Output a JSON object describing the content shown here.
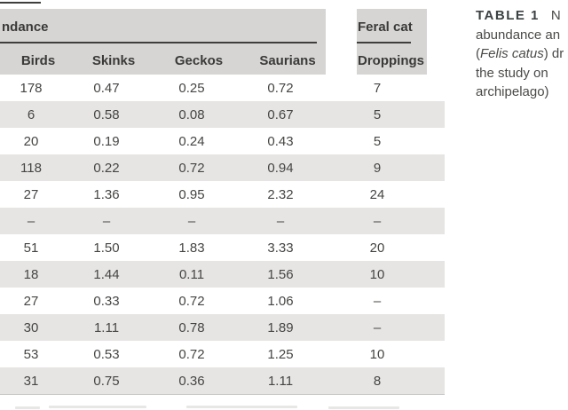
{
  "colors": {
    "header_band": "#d6d5d3",
    "row_stripe": "#e6e5e3",
    "rule": "#3e3e3c",
    "header_text": "#3a3a38",
    "body_text": "#454543",
    "caption_text": "#4a4a48"
  },
  "table": {
    "spanner_left": "ndance",
    "spanner_right": "Feral cat",
    "columns": [
      "Birds",
      "Skinks",
      "Geckos",
      "Saurians",
      "Droppings"
    ],
    "rows": [
      [
        "178",
        "0.47",
        "0.25",
        "0.72",
        "7"
      ],
      [
        "6",
        "0.58",
        "0.08",
        "0.67",
        "5"
      ],
      [
        "20",
        "0.19",
        "0.24",
        "0.43",
        "5"
      ],
      [
        "118",
        "0.22",
        "0.72",
        "0.94",
        "9"
      ],
      [
        "27",
        "1.36",
        "0.95",
        "2.32",
        "24"
      ],
      [
        "–",
        "–",
        "–",
        "–",
        "–"
      ],
      [
        "51",
        "1.50",
        "1.83",
        "3.33",
        "20"
      ],
      [
        "18",
        "1.44",
        "0.11",
        "1.56",
        "10"
      ],
      [
        "27",
        "0.33",
        "0.72",
        "1.06",
        "–"
      ],
      [
        "30",
        "1.11",
        "0.78",
        "1.89",
        "–"
      ],
      [
        "53",
        "0.53",
        "0.72",
        "1.25",
        "10"
      ],
      [
        "31",
        "0.75",
        "0.36",
        "1.11",
        "8"
      ]
    ]
  },
  "caption": {
    "title_label": "TABLE 1",
    "title_rest": "N",
    "line2": "abundance an",
    "line3_pre": "(",
    "line3_italic": "Felis catus",
    "line3_post": ") dr",
    "line4": "the study on",
    "line5": "archipelago)"
  }
}
